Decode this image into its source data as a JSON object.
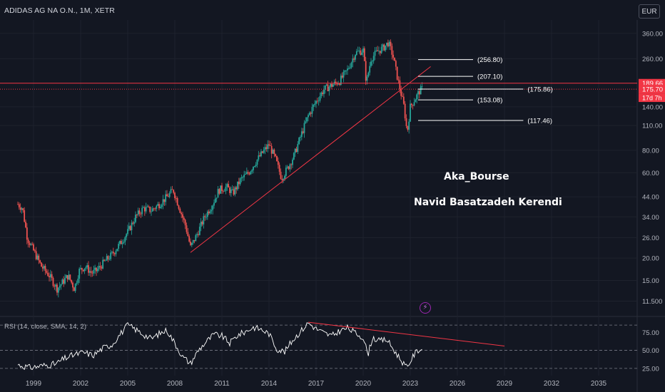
{
  "header": {
    "symbol_title": "ADIDAS AG NA O.N., 1M, XETR",
    "currency_button": "EUR"
  },
  "watermark": {
    "line1": "Aka_Bourse",
    "line2": "Navid Basatzadeh Kerendi"
  },
  "rsi": {
    "label": "RSI (14, close, SMA, 14, 2)"
  },
  "icons": {
    "alert": "bolt-icon"
  },
  "colors": {
    "background": "#131722",
    "up": "#26a69a",
    "down": "#ef5350",
    "trendline": "#f23645",
    "grid": "#1e222d",
    "text": "#b2b5be"
  },
  "chart_data": [
    {
      "type": "candlestick",
      "title": "ADIDAS AG NA O.N., 1M, XETR",
      "yscale": "log",
      "ylim": [
        9.8,
        420
      ],
      "y_ticks": [
        "360.00",
        "260.00",
        "140.00",
        "110.00",
        "80.00",
        "60.00",
        "44.00",
        "34.00",
        "26.00",
        "20.00",
        "15.00",
        "11.500"
      ],
      "y_tick_values": [
        360,
        260,
        140,
        110,
        80,
        60,
        44,
        34,
        26,
        20,
        15,
        11.5
      ],
      "x_ticks": [
        "1999",
        "2002",
        "2005",
        "2008",
        "2011",
        "2014",
        "2017",
        "2020",
        "2023",
        "2026",
        "2029",
        "2032",
        "2035"
      ],
      "x_tick_values": [
        1999,
        2002,
        2005,
        2008,
        2011,
        2014,
        2017,
        2020,
        2023,
        2026,
        2029,
        2032,
        2035
      ],
      "price_path": [
        [
          1998.0,
          40
        ],
        [
          1998.3,
          38
        ],
        [
          1998.6,
          26
        ],
        [
          1999.0,
          22
        ],
        [
          1999.5,
          18
        ],
        [
          2000.0,
          16
        ],
        [
          2000.5,
          13.5
        ],
        [
          2000.8,
          14.5
        ],
        [
          2001.2,
          16
        ],
        [
          2001.6,
          13.5
        ],
        [
          2001.9,
          17
        ],
        [
          2002.3,
          18
        ],
        [
          2002.7,
          16.5
        ],
        [
          2003.0,
          17
        ],
        [
          2003.5,
          19
        ],
        [
          2004.0,
          21
        ],
        [
          2004.5,
          24
        ],
        [
          2005.0,
          28
        ],
        [
          2005.5,
          34
        ],
        [
          2006.0,
          38
        ],
        [
          2006.5,
          37
        ],
        [
          2007.0,
          40
        ],
        [
          2007.5,
          44
        ],
        [
          2007.9,
          48
        ],
        [
          2008.3,
          38
        ],
        [
          2008.7,
          30
        ],
        [
          2009.0,
          23
        ],
        [
          2009.4,
          27
        ],
        [
          2009.9,
          34
        ],
        [
          2010.4,
          40
        ],
        [
          2010.8,
          48
        ],
        [
          2011.3,
          50
        ],
        [
          2011.7,
          46
        ],
        [
          2012.2,
          55
        ],
        [
          2012.7,
          60
        ],
        [
          2013.2,
          70
        ],
        [
          2013.7,
          80
        ],
        [
          2014.0,
          86
        ],
        [
          2014.4,
          72
        ],
        [
          2014.8,
          56
        ],
        [
          2015.2,
          64
        ],
        [
          2015.6,
          75
        ],
        [
          2016.0,
          95
        ],
        [
          2016.5,
          125
        ],
        [
          2017.0,
          150
        ],
        [
          2017.5,
          175
        ],
        [
          2018.0,
          185
        ],
        [
          2018.5,
          195
        ],
        [
          2019.0,
          225
        ],
        [
          2019.5,
          280
        ],
        [
          2020.0,
          290
        ],
        [
          2020.2,
          190
        ],
        [
          2020.5,
          260
        ],
        [
          2020.9,
          285
        ],
        [
          2021.3,
          300
        ],
        [
          2021.6,
          320
        ],
        [
          2021.9,
          270
        ],
        [
          2022.2,
          200
        ],
        [
          2022.6,
          140
        ],
        [
          2022.8,
          100
        ],
        [
          2023.0,
          140
        ],
        [
          2023.3,
          155
        ],
        [
          2023.6,
          172
        ],
        [
          2023.75,
          176
        ]
      ],
      "current_price": 175.7,
      "price_labels": [
        {
          "value": 189.66,
          "color": "#f23645"
        },
        {
          "value": 175.7,
          "color": "#f23645"
        }
      ],
      "countdown_label": "17d 7h",
      "levels": [
        {
          "label": "(256.80)",
          "value": 256.8,
          "x_start": 2023.5,
          "x_end": 2027.0
        },
        {
          "label": "(207.10)",
          "value": 207.1,
          "x_start": 2023.5,
          "x_end": 2027.0
        },
        {
          "label": "(175.86)",
          "value": 175.86,
          "x_start": 2023.5,
          "x_end": 2030.2
        },
        {
          "label": "(153.08)",
          "value": 153.08,
          "x_start": 2023.5,
          "x_end": 2027.0
        },
        {
          "label": "(117.46)",
          "value": 117.46,
          "x_start": 2023.5,
          "x_end": 2030.2
        }
      ],
      "trendline": {
        "from": [
          2009.0,
          21.5
        ],
        "to": [
          2024.3,
          235
        ]
      },
      "horizontal_line": {
        "value": 189.66
      }
    },
    {
      "type": "line",
      "title": "RSI (14, close, SMA, 14, 2)",
      "ylim": [
        18,
        95
      ],
      "y_ticks": [
        "75.00",
        "50.00",
        "25.00"
      ],
      "y_tick_values": [
        75,
        50,
        25
      ],
      "bands": [
        25,
        50,
        85
      ],
      "rsi_path": [
        [
          1998.0,
          30
        ],
        [
          1998.8,
          26
        ],
        [
          1999.6,
          29
        ],
        [
          2000.4,
          31
        ],
        [
          2001.0,
          39
        ],
        [
          2001.6,
          44
        ],
        [
          2002.2,
          47
        ],
        [
          2002.8,
          43
        ],
        [
          2003.4,
          53
        ],
        [
          2004.0,
          58
        ],
        [
          2004.5,
          72
        ],
        [
          2005.0,
          85
        ],
        [
          2005.5,
          79
        ],
        [
          2006.0,
          72
        ],
        [
          2006.5,
          66
        ],
        [
          2007.0,
          73
        ],
        [
          2007.5,
          78
        ],
        [
          2008.0,
          60
        ],
        [
          2008.5,
          41
        ],
        [
          2009.0,
          32
        ],
        [
          2009.5,
          50
        ],
        [
          2010.0,
          62
        ],
        [
          2010.5,
          72
        ],
        [
          2011.0,
          70
        ],
        [
          2011.5,
          60
        ],
        [
          2012.0,
          71
        ],
        [
          2012.5,
          76
        ],
        [
          2013.0,
          82
        ],
        [
          2013.5,
          79
        ],
        [
          2014.0,
          73
        ],
        [
          2014.5,
          52
        ],
        [
          2015.0,
          48
        ],
        [
          2015.5,
          64
        ],
        [
          2016.0,
          76
        ],
        [
          2016.5,
          88
        ],
        [
          2017.0,
          80
        ],
        [
          2017.5,
          74
        ],
        [
          2018.0,
          70
        ],
        [
          2018.5,
          77
        ],
        [
          2019.0,
          81
        ],
        [
          2019.5,
          74
        ],
        [
          2020.0,
          68
        ],
        [
          2020.3,
          44
        ],
        [
          2020.6,
          68
        ],
        [
          2021.0,
          63
        ],
        [
          2021.5,
          65
        ],
        [
          2022.0,
          49
        ],
        [
          2022.5,
          34
        ],
        [
          2022.8,
          25
        ],
        [
          2023.0,
          35
        ],
        [
          2023.3,
          46
        ],
        [
          2023.6,
          52
        ],
        [
          2023.75,
          51
        ]
      ],
      "trendline": {
        "from": [
          2016.5,
          89
        ],
        "to": [
          2029.0,
          56
        ]
      }
    }
  ]
}
